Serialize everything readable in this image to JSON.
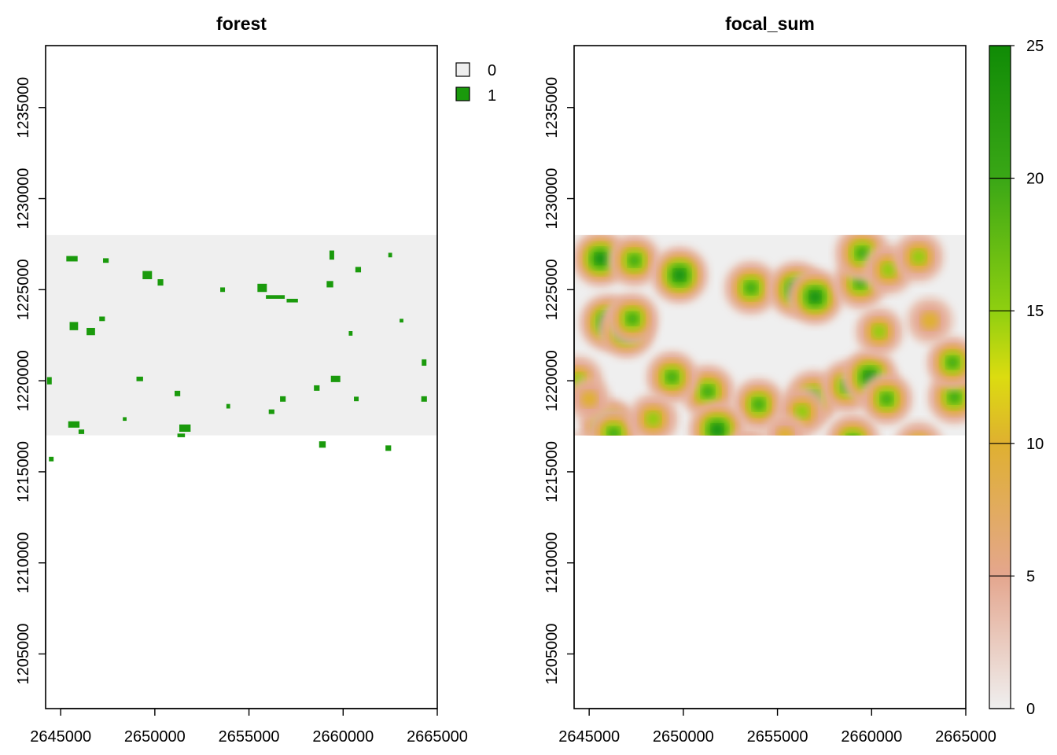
{
  "chart_data": [
    {
      "type": "heatmap",
      "title": "forest",
      "value_type": "categorical",
      "xlim": [
        2644200,
        2665000
      ],
      "ylim": [
        1202000,
        1238400
      ],
      "xticks": [
        2645000,
        2650000,
        2655000,
        2660000,
        2665000
      ],
      "yticks": [
        1205000,
        1210000,
        1215000,
        1220000,
        1225000,
        1230000,
        1235000
      ],
      "raster_extent": {
        "xmin": 2644200,
        "xmax": 2665000,
        "ymin": 1217000,
        "ymax": 1228000
      },
      "grid": false,
      "legend": {
        "position": "top-right",
        "entries": [
          {
            "label": "0",
            "color": "#efefef"
          },
          {
            "label": "1",
            "color": "#1a9a0c"
          }
        ]
      },
      "forest_patches": [
        [
          2645600,
          1226700,
          600,
          300
        ],
        [
          2647400,
          1226600,
          300,
          250
        ],
        [
          2649600,
          1225800,
          500,
          450
        ],
        [
          2650300,
          1225400,
          300,
          350
        ],
        [
          2653600,
          1225000,
          250,
          250
        ],
        [
          2655700,
          1225100,
          500,
          450
        ],
        [
          2656400,
          1224600,
          1000,
          200
        ],
        [
          2657300,
          1224400,
          600,
          200
        ],
        [
          2659300,
          1225300,
          350,
          350
        ],
        [
          2659400,
          1226900,
          250,
          500
        ],
        [
          2660800,
          1226100,
          300,
          300
        ],
        [
          2662500,
          1226900,
          200,
          250
        ],
        [
          2645700,
          1223000,
          450,
          450
        ],
        [
          2646600,
          1222700,
          450,
          400
        ],
        [
          2647200,
          1223400,
          300,
          250
        ],
        [
          2644400,
          1220000,
          250,
          400
        ],
        [
          2651200,
          1219300,
          300,
          300
        ],
        [
          2649200,
          1220100,
          350,
          250
        ],
        [
          2653900,
          1218600,
          200,
          250
        ],
        [
          2656800,
          1219000,
          300,
          300
        ],
        [
          2658600,
          1219600,
          300,
          300
        ],
        [
          2659600,
          1220100,
          500,
          350
        ],
        [
          2660700,
          1219000,
          250,
          250
        ],
        [
          2664300,
          1219000,
          300,
          300
        ],
        [
          2664300,
          1221000,
          250,
          350
        ],
        [
          2645700,
          1217600,
          600,
          350
        ],
        [
          2646100,
          1217200,
          300,
          250
        ],
        [
          2651600,
          1217400,
          600,
          400
        ],
        [
          2651400,
          1217000,
          400,
          200
        ],
        [
          2648400,
          1217900,
          200,
          200
        ],
        [
          2658900,
          1216500,
          350,
          350
        ],
        [
          2662400,
          1216300,
          300,
          300
        ],
        [
          2644500,
          1215700,
          250,
          250
        ],
        [
          2656200,
          1218300,
          300,
          250
        ],
        [
          2660400,
          1222600,
          200,
          250
        ],
        [
          2663100,
          1223300,
          200,
          200
        ]
      ]
    },
    {
      "type": "heatmap",
      "title": "focal_sum",
      "value_type": "continuous",
      "xlim": [
        2644200,
        2665000
      ],
      "ylim": [
        1202000,
        1238400
      ],
      "xticks": [
        2645000,
        2650000,
        2655000,
        2660000,
        2665000
      ],
      "yticks": [
        1205000,
        1210000,
        1215000,
        1220000,
        1225000,
        1230000,
        1235000
      ],
      "raster_extent": {
        "xmin": 2644200,
        "xmax": 2665000,
        "ymin": 1217000,
        "ymax": 1228000
      },
      "grid": false,
      "colorbar": {
        "position": "right",
        "range": [
          0,
          25
        ],
        "ticks": [
          0,
          5,
          10,
          15,
          20,
          25
        ],
        "stops": [
          {
            "value": 0,
            "color": "#efefef"
          },
          {
            "value": 5,
            "color": "#e4a68e"
          },
          {
            "value": 10,
            "color": "#dfb030"
          },
          {
            "value": 12.5,
            "color": "#dcdc10"
          },
          {
            "value": 15,
            "color": "#8fcf10"
          },
          {
            "value": 20,
            "color": "#3aa716"
          },
          {
            "value": 25,
            "color": "#108b06"
          }
        ]
      },
      "hotspots": [
        [
          2645600,
          1226700,
          24
        ],
        [
          2647400,
          1226600,
          20
        ],
        [
          2649800,
          1225800,
          25
        ],
        [
          2653600,
          1225100,
          22
        ],
        [
          2656000,
          1225000,
          25
        ],
        [
          2657000,
          1224600,
          24
        ],
        [
          2659400,
          1225400,
          22
        ],
        [
          2659500,
          1227000,
          23
        ],
        [
          2660900,
          1226100,
          18
        ],
        [
          2662500,
          1226800,
          18
        ],
        [
          2646000,
          1223200,
          25
        ],
        [
          2647000,
          1222800,
          25
        ],
        [
          2647300,
          1223400,
          20
        ],
        [
          2644400,
          1220000,
          18
        ],
        [
          2651300,
          1219400,
          22
        ],
        [
          2649400,
          1220200,
          20
        ],
        [
          2654000,
          1218700,
          20
        ],
        [
          2656900,
          1219100,
          22
        ],
        [
          2658700,
          1219700,
          20
        ],
        [
          2659900,
          1220200,
          24
        ],
        [
          2660800,
          1219000,
          20
        ],
        [
          2664400,
          1219100,
          22
        ],
        [
          2664300,
          1221000,
          20
        ],
        [
          2646000,
          1217500,
          25
        ],
        [
          2646300,
          1217100,
          20
        ],
        [
          2651800,
          1217300,
          25
        ],
        [
          2648400,
          1217900,
          18
        ],
        [
          2659000,
          1216700,
          22
        ],
        [
          2662500,
          1216400,
          18
        ],
        [
          2644500,
          1215700,
          18
        ],
        [
          2656300,
          1218300,
          18
        ],
        [
          2660400,
          1222700,
          16
        ],
        [
          2663100,
          1223300,
          14
        ],
        [
          2653500,
          1216200,
          12
        ],
        [
          2655400,
          1217000,
          10
        ],
        [
          2645000,
          1219000,
          10
        ]
      ]
    }
  ]
}
